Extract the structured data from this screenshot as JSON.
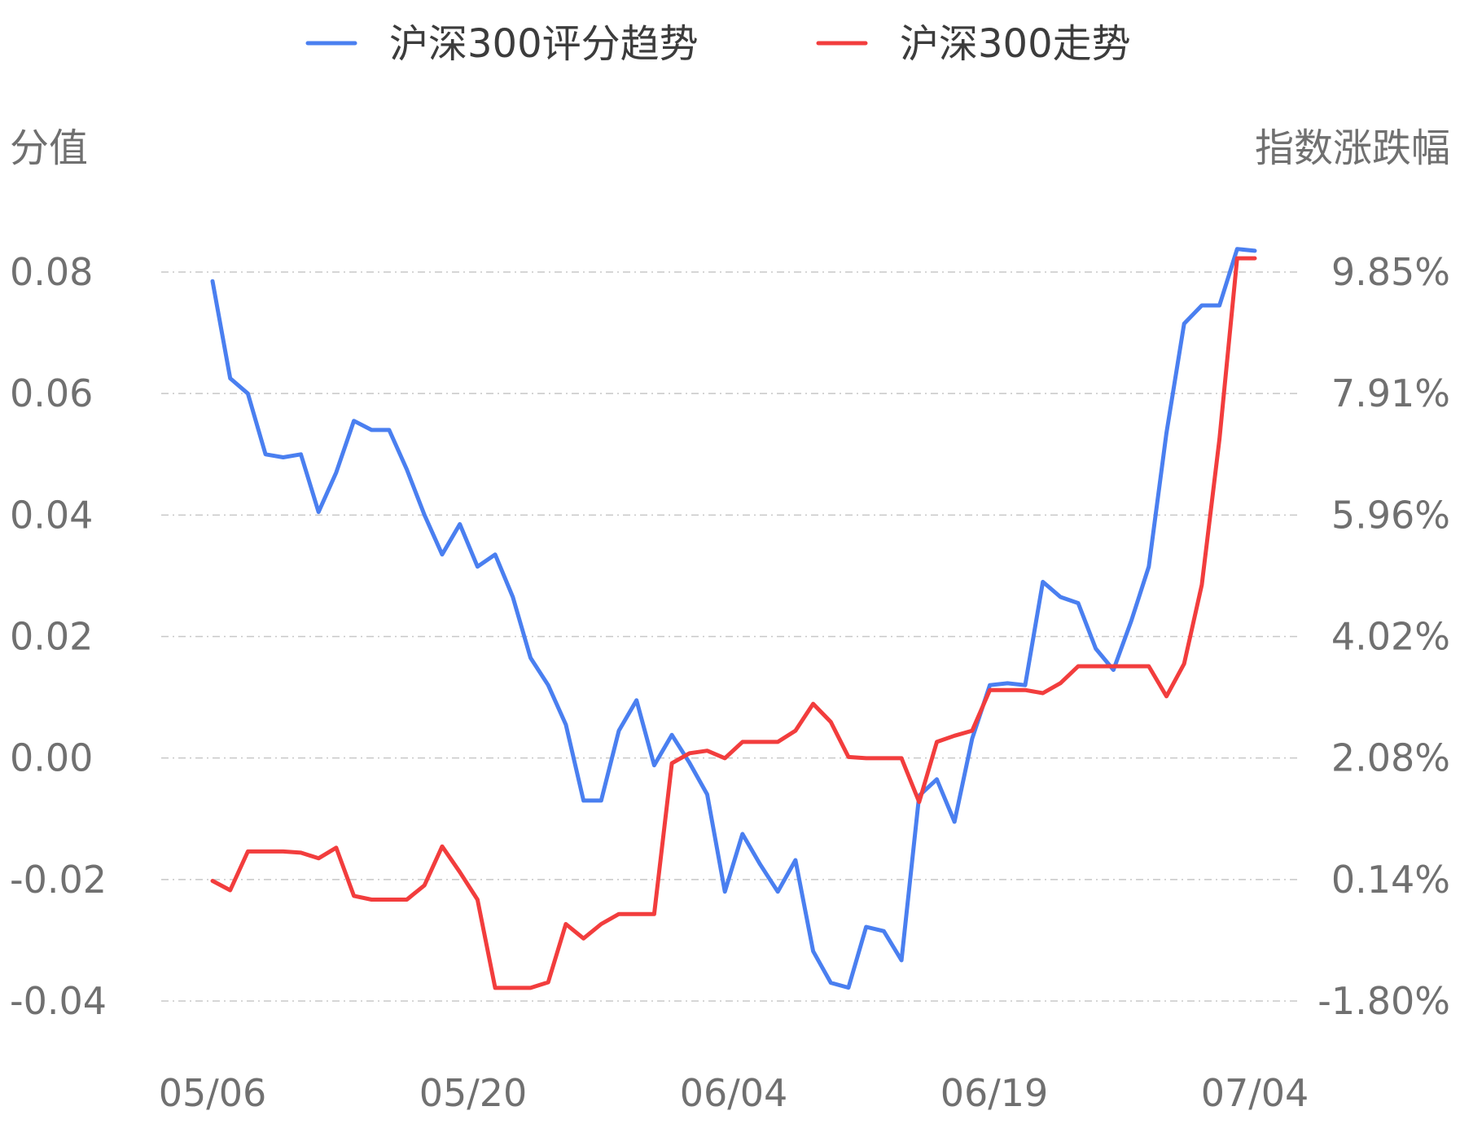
{
  "chart_data": {
    "type": "line",
    "legend": [
      {
        "label": "沪深300评分趋势",
        "color": "#4a7ff0"
      },
      {
        "label": "沪深300走势",
        "color": "#f23d3d"
      }
    ],
    "legend_position": "top-center",
    "y_left_label": "分值",
    "y_right_label": "指数涨跌幅",
    "y_left_ticks": [
      "0.08",
      "0.06",
      "0.04",
      "0.02",
      "0.00",
      "-0.02",
      "-0.04"
    ],
    "y_right_ticks": [
      "9.85%",
      "7.91%",
      "5.96%",
      "4.02%",
      "2.08%",
      "0.14%",
      "-1.80%"
    ],
    "y_left_range": [
      -0.04,
      0.08
    ],
    "y_right_range": [
      -1.8,
      9.85
    ],
    "x_tick_labels": [
      "05/06",
      "05/20",
      "06/04",
      "06/19",
      "07/04"
    ],
    "grid": true,
    "series": [
      {
        "name": "沪深300评分趋势",
        "axis": "left",
        "color": "#4a7ff0",
        "values": [
          0.0785,
          0.0625,
          0.06,
          0.05,
          0.0495,
          0.05,
          0.0405,
          0.047,
          0.0555,
          0.054,
          0.054,
          0.0475,
          0.04,
          0.0335,
          0.0385,
          0.0315,
          0.0335,
          0.0265,
          0.0165,
          0.012,
          0.0055,
          -0.007,
          -0.007,
          0.0045,
          0.0095,
          -0.0012,
          0.0038,
          -0.0008,
          -0.006,
          -0.022,
          -0.0125,
          -0.0175,
          -0.022,
          -0.0168,
          -0.0318,
          -0.037,
          -0.0378,
          -0.0278,
          -0.0285,
          -0.0333,
          -0.0062,
          -0.0035,
          -0.0105,
          0.0032,
          0.012,
          0.0123,
          0.012,
          0.029,
          0.0265,
          0.0255,
          0.018,
          0.0145,
          0.0225,
          0.0315,
          0.0535,
          0.0715,
          0.0745,
          0.0745,
          0.0838,
          0.0835
        ]
      },
      {
        "name": "沪深300走势",
        "axis": "right",
        "color": "#f23d3d",
        "values": [
          0.12,
          -0.03,
          0.59,
          0.59,
          0.59,
          0.57,
          0.48,
          0.65,
          -0.12,
          -0.18,
          -0.18,
          -0.18,
          0.05,
          0.67,
          0.26,
          -0.18,
          -1.59,
          -1.59,
          -1.59,
          -1.5,
          -0.57,
          -0.8,
          -0.57,
          -0.41,
          -0.41,
          -0.41,
          2.0,
          2.16,
          2.2,
          2.08,
          2.34,
          2.34,
          2.34,
          2.52,
          2.95,
          2.66,
          2.1,
          2.08,
          2.08,
          2.08,
          1.38,
          2.34,
          2.44,
          2.52,
          3.17,
          3.17,
          3.17,
          3.12,
          3.28,
          3.55,
          3.55,
          3.55,
          3.55,
          3.55,
          3.07,
          3.59,
          4.85,
          7.18,
          10.07,
          10.07
        ]
      }
    ]
  }
}
